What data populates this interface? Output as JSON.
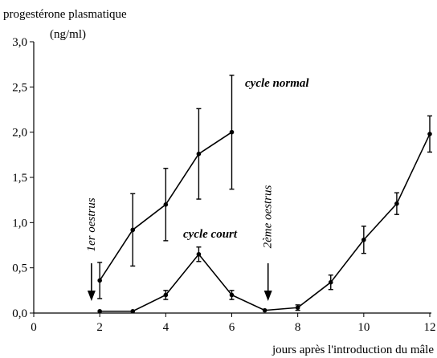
{
  "chart_data": {
    "type": "line",
    "y_label": "progestérone plasmatique",
    "y_unit": "(ng/ml)",
    "x_label": "jours après l'introduction du mâle",
    "xlim": [
      0,
      12
    ],
    "xticks": [
      0,
      2,
      4,
      6,
      8,
      10,
      12
    ],
    "ylim": [
      0,
      3.0
    ],
    "yticks": [
      {
        "value": 0,
        "label": "0,0"
      },
      {
        "value": 0.5,
        "label": "0,5"
      },
      {
        "value": 1.0,
        "label": "1,0"
      },
      {
        "value": 1.5,
        "label": "1,5"
      },
      {
        "value": 2.0,
        "label": "2,0"
      },
      {
        "value": 2.5,
        "label": "2,5"
      },
      {
        "value": 3.0,
        "label": "3,0"
      }
    ],
    "grid": false,
    "series": [
      {
        "name": "cycle normal",
        "color": "#000000",
        "x": [
          2,
          3,
          4,
          5,
          6
        ],
        "values": [
          0.36,
          0.92,
          1.2,
          1.76,
          2.0
        ],
        "errors": [
          0.2,
          0.4,
          0.4,
          0.5,
          0.63
        ]
      },
      {
        "name": "cycle court",
        "color": "#000000",
        "x": [
          2,
          3,
          4,
          5,
          6,
          7,
          8,
          9,
          10,
          11,
          12
        ],
        "values": [
          0.02,
          0.02,
          0.2,
          0.65,
          0.2,
          0.03,
          0.06,
          0.34,
          0.81,
          1.21,
          1.98
        ],
        "errors": [
          0,
          0,
          0.05,
          0.08,
          0.05,
          0,
          0.03,
          0.08,
          0.15,
          0.12,
          0.2
        ]
      }
    ],
    "annotations": [
      {
        "text": "1er oestrus",
        "x": 1.75
      },
      {
        "text": "2ème oestrus",
        "x": 7.1
      }
    ]
  }
}
